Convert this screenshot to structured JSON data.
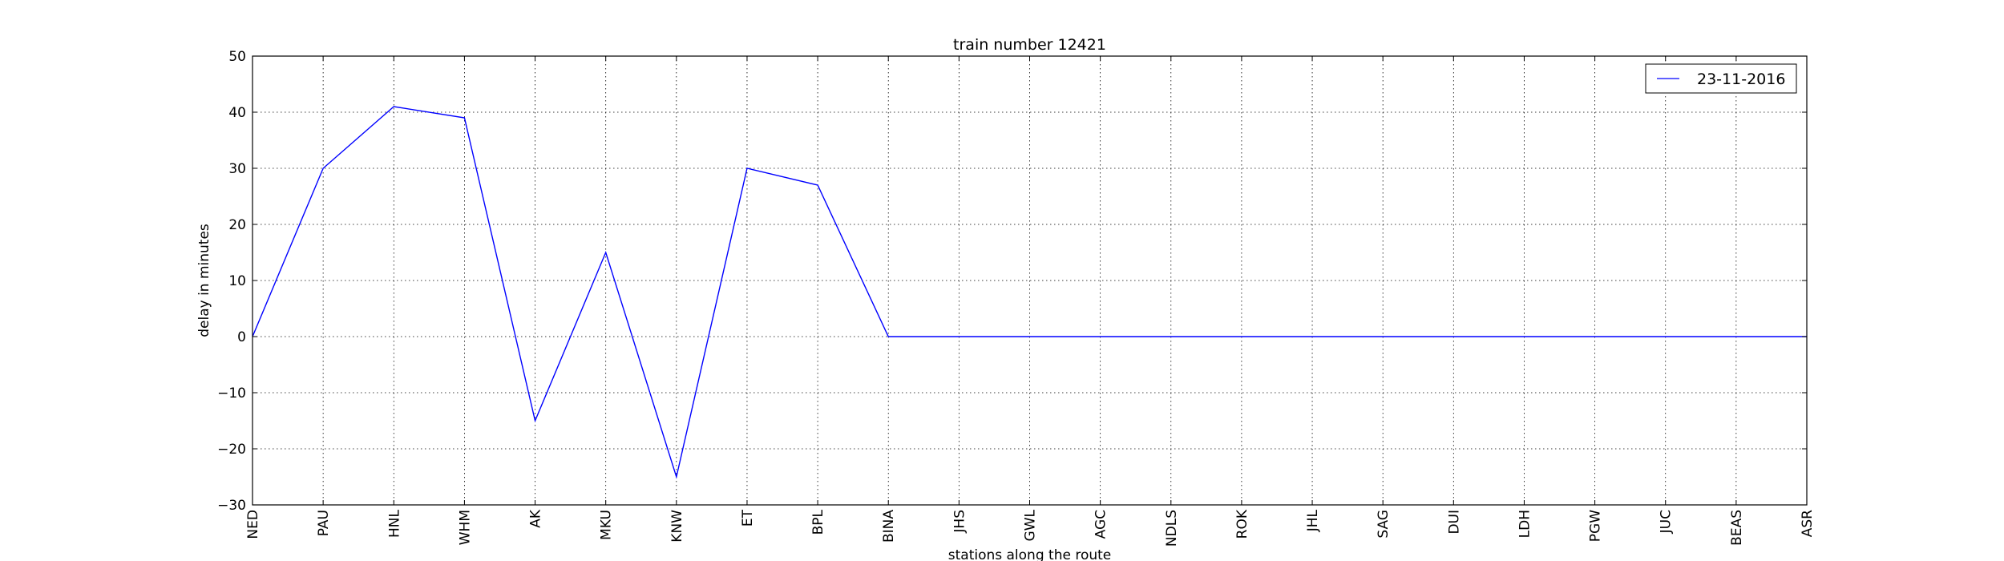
{
  "chart_data": {
    "type": "line",
    "title": "train number 12421",
    "xlabel": "stations along the route",
    "ylabel": "delay in minutes",
    "categories": [
      "NED",
      "PAU",
      "HNL",
      "WHM",
      "AK",
      "MKU",
      "KNW",
      "ET",
      "BPL",
      "BINA",
      "JHS",
      "GWL",
      "AGC",
      "NDLS",
      "ROK",
      "JHL",
      "SAG",
      "DUI",
      "LDH",
      "PGW",
      "JUC",
      "BEAS",
      "ASR"
    ],
    "series": [
      {
        "name": "23-11-2016",
        "color": "#0000ff",
        "values": [
          0,
          30,
          41,
          39,
          -15,
          15,
          -25,
          30,
          27,
          0,
          0,
          0,
          0,
          0,
          0,
          0,
          0,
          0,
          0,
          0,
          0,
          0,
          0
        ]
      }
    ],
    "ylim": [
      -30,
      50
    ],
    "yticks": [
      -30,
      -20,
      -10,
      0,
      10,
      20,
      30,
      40,
      50
    ],
    "ytick_labels": [
      "−30",
      "−20",
      "−10",
      "0",
      "10",
      "20",
      "30",
      "40",
      "50"
    ],
    "grid": true,
    "legend_position": "top-right"
  }
}
